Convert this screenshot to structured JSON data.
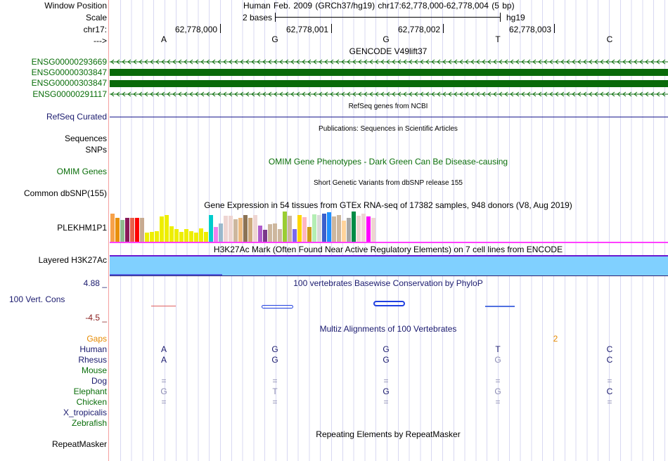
{
  "header": {
    "title": "Human Feb. 2009 (GRCh37/hg19)   chr17:62,778,000-62,778,004 (5 bp)",
    "scale_label": "2 bases",
    "assembly": "hg19",
    "positions": [
      "62,778,000",
      "62,778,001",
      "62,778,002",
      "62,778,003"
    ],
    "bases": [
      "A",
      "G",
      "G",
      "T",
      "C"
    ]
  },
  "labels": {
    "window_position": "Window Position",
    "scale": "Scale",
    "chrom": "chr17:",
    "strand": "--->",
    "refseq": "RefSeq Curated",
    "sequences": "Sequences",
    "snps": "SNPs",
    "omim": "OMIM Genes",
    "dbsnp": "Common dbSNP(155)",
    "gtex_gene": "PLEKHM1P1",
    "h3k27ac": "Layered H3K27Ac",
    "cons_max": "4.88 _",
    "cons": "100 Vert. Cons",
    "cons_min": "-4.5 _",
    "gaps": "Gaps",
    "repeatmasker": "RepeatMasker"
  },
  "genes": [
    "ENSG00000293669",
    "ENSG00000303847",
    "ENSG00000303847",
    "ENSG00000291117"
  ],
  "track_titles": {
    "gencode": "GENCODE V49lift37",
    "refseq": "RefSeq genes from NCBI",
    "pubs": "Publications: Sequences in Scientific Articles",
    "omim": "OMIM Gene Phenotypes - Dark Green Can Be Disease-causing",
    "dbsnp": "Short Genetic Variants from dbSNP release 155",
    "gtex": "Gene Expression in 54 tissues from GTEx RNA-seq of 17382 samples, 948 donors (V8, Aug 2019)",
    "h3k27ac": "H3K27Ac Mark (Often Found Near Active Regulatory Elements) on 7 cell lines from ENCODE",
    "phylop": "100 vertebrates Basewise Conservation by PhyloP",
    "multiz": "Multiz Alignments of 100 Vertebrates",
    "repeats": "Repeating Elements by RepeatMasker"
  },
  "gaps_value": "2",
  "alignment": [
    {
      "species": "Human",
      "color": "n",
      "bases": [
        "A",
        "G",
        "G",
        "T",
        "C"
      ],
      "dim": [
        0,
        0,
        0,
        0,
        0
      ]
    },
    {
      "species": "Rhesus",
      "color": "n",
      "bases": [
        "A",
        "G",
        "G",
        "G",
        "C"
      ],
      "dim": [
        0,
        0,
        0,
        1,
        0
      ]
    },
    {
      "species": "Mouse",
      "color": "g",
      "bases": [
        "",
        "",
        "",
        "",
        ""
      ],
      "dim": [
        0,
        0,
        0,
        0,
        0
      ]
    },
    {
      "species": "Dog",
      "color": "n",
      "bases": [
        "=",
        "=",
        "=",
        "=",
        "="
      ],
      "dim": [
        1,
        1,
        1,
        1,
        1
      ]
    },
    {
      "species": "Elephant",
      "color": "g",
      "bases": [
        "G",
        "T",
        "G",
        "G",
        "C"
      ],
      "dim": [
        1,
        1,
        0,
        1,
        0
      ]
    },
    {
      "species": "Chicken",
      "color": "g",
      "bases": [
        "=",
        "=",
        "=",
        "=",
        "="
      ],
      "dim": [
        1,
        1,
        1,
        1,
        1
      ]
    },
    {
      "species": "X_tropicalis",
      "color": "n",
      "bases": [
        "",
        "",
        "",
        "",
        ""
      ],
      "dim": [
        0,
        0,
        0,
        0,
        0
      ]
    },
    {
      "species": "Zebrafish",
      "color": "g",
      "bases": [
        "",
        "",
        "",
        "",
        ""
      ],
      "dim": [
        0,
        0,
        0,
        0,
        0
      ]
    }
  ],
  "chart_data": {
    "type": "bar",
    "title": "Gene Expression in 54 tissues from GTEx RNA-seq of 17382 samples, 948 donors (V8, Aug 2019)",
    "ylim": [
      0,
      100
    ],
    "values": [
      92,
      78,
      73,
      80,
      80,
      80,
      80,
      31,
      33,
      35,
      83,
      89,
      52,
      41,
      33,
      42,
      36,
      30,
      45,
      33,
      89,
      48,
      61,
      86,
      86,
      75,
      78,
      89,
      78,
      89,
      53,
      39,
      58,
      61,
      42,
      100,
      86,
      42,
      89,
      81,
      48,
      91,
      89,
      92,
      97,
      84,
      89,
      70,
      78,
      100,
      86,
      92,
      84,
      80
    ],
    "colors": [
      "#f7a24b",
      "#e8900c",
      "#8fbc8f",
      "#8b1a5a",
      "#e8604c",
      "#ff0000",
      "#c8aa90",
      "#eeee00",
      "#eeee00",
      "#eeee00",
      "#eeee00",
      "#eeee00",
      "#eeee00",
      "#eeee00",
      "#eeee00",
      "#eeee00",
      "#eeee00",
      "#eeee00",
      "#eeee00",
      "#eeee00",
      "#00cccc",
      "#ee82ee",
      "#9ab8cc",
      "#eed5d2",
      "#eed5d2",
      "#cdb79e",
      "#eebb80",
      "#8b7355",
      "#cdaa7d",
      "#eed5d2",
      "#b05ccc",
      "#7a378b",
      "#cdb79e",
      "#cdb79e",
      "#cdb79e",
      "#9acd32",
      "#cdb79e",
      "#7b68ee",
      "#ffd700",
      "#ffb6c1",
      "#cd9b1d",
      "#b4eeb4",
      "#d9d9d9",
      "#3a5fcd",
      "#1e90ff",
      "#cdb79e",
      "#cdb79e",
      "#ffd39b",
      "#a6a6a6",
      "#008b45",
      "#eed5d2",
      "#eed5d2",
      "#ff00ff",
      "#eed5d2"
    ]
  }
}
